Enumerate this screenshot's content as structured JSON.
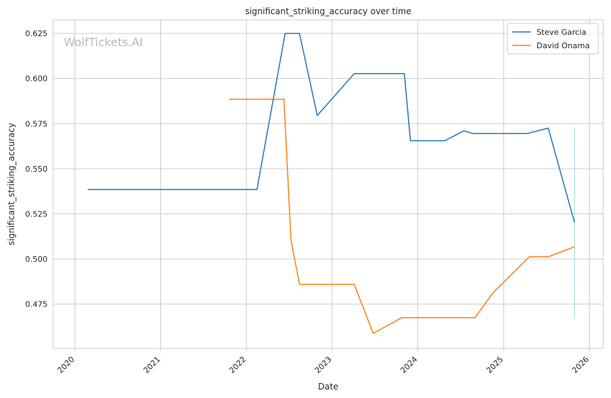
{
  "chart_data": {
    "type": "line",
    "title": "significant_striking_accuracy over time",
    "xlabel": "Date",
    "ylabel": "significant_striking_accuracy",
    "watermark": "WolfTickets.AI",
    "x_axis_type": "date",
    "xlim": [
      "2019-10-01",
      "2026-03-01"
    ],
    "ylim": [
      0.4505,
      0.6325
    ],
    "x_ticks": [
      "2020",
      "2021",
      "2022",
      "2023",
      "2024",
      "2025",
      "2026"
    ],
    "y_ticks": [
      "0.475",
      "0.500",
      "0.525",
      "0.550",
      "0.575",
      "0.600",
      "0.625"
    ],
    "grid": true,
    "legend_position": "top-right",
    "series": [
      {
        "name": "Steve Garcia",
        "color": "#1f77b4",
        "points": [
          [
            "2020-02-25",
            0.5385
          ],
          [
            "2022-02-15",
            0.5385
          ],
          [
            "2022-06-15",
            0.625
          ],
          [
            "2022-08-15",
            0.625
          ],
          [
            "2022-10-30",
            0.5795
          ],
          [
            "2023-04-05",
            0.6027
          ],
          [
            "2023-11-05",
            0.6027
          ],
          [
            "2023-12-01",
            0.5655
          ],
          [
            "2024-04-25",
            0.5655
          ],
          [
            "2024-07-15",
            0.571
          ],
          [
            "2024-08-25",
            0.5695
          ],
          [
            "2025-04-10",
            0.5695
          ],
          [
            "2025-07-10",
            0.5725
          ],
          [
            "2025-10-30",
            0.5202
          ]
        ]
      },
      {
        "name": "David Onama",
        "color": "#ff7f0e",
        "points": [
          [
            "2021-10-20",
            0.5885
          ],
          [
            "2022-06-10",
            0.5885
          ],
          [
            "2022-07-10",
            0.5105
          ],
          [
            "2022-08-15",
            0.486
          ],
          [
            "2023-04-05",
            0.486
          ],
          [
            "2023-06-25",
            0.4588
          ],
          [
            "2023-10-25",
            0.4675
          ],
          [
            "2024-09-01",
            0.4675
          ],
          [
            "2024-11-15",
            0.481
          ],
          [
            "2025-04-20",
            0.5012
          ],
          [
            "2025-07-10",
            0.5012
          ],
          [
            "2025-10-30",
            0.5068
          ]
        ]
      }
    ],
    "annotations": [
      {
        "type": "vertical-segment",
        "x": "2025-10-30",
        "y_range": [
          0.467,
          0.5725
        ],
        "color": "#9fd6cf"
      }
    ]
  }
}
